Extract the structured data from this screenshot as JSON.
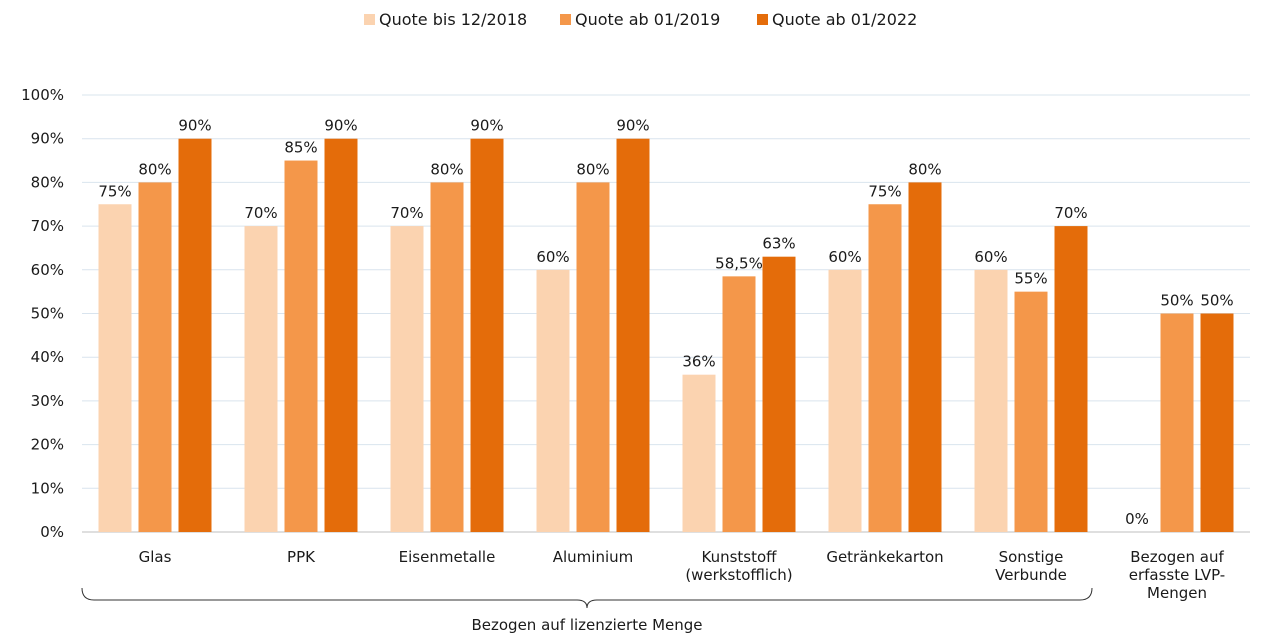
{
  "chart_data": {
    "type": "bar",
    "categories": [
      [
        "Glas"
      ],
      [
        "PPK"
      ],
      [
        "Eisenmetalle"
      ],
      [
        "Aluminium"
      ],
      [
        "Kunststoff",
        "(werkstofflich)"
      ],
      [
        "Getränkekarton"
      ],
      [
        "Sonstige",
        "Verbunde"
      ],
      [
        "Bezogen auf",
        "erfasste LVP-",
        "Mengen"
      ]
    ],
    "series": [
      {
        "name": "Quote bis 12/2018",
        "color": "#fbd3b0",
        "values": [
          75,
          70,
          70,
          60,
          36,
          60,
          60,
          0
        ],
        "labels": [
          "75%",
          "70%",
          "70%",
          "60%",
          "36%",
          "60%",
          "60%",
          "0%"
        ]
      },
      {
        "name": "Quote ab 01/2019",
        "color": "#f4974a",
        "values": [
          80,
          85,
          80,
          80,
          58.5,
          75,
          55,
          50
        ],
        "labels": [
          "80%",
          "85%",
          "80%",
          "80%",
          "58,5%",
          "75%",
          "55%",
          "50%"
        ]
      },
      {
        "name": "Quote ab 01/2022",
        "color": "#e46c0a",
        "values": [
          90,
          90,
          90,
          90,
          63,
          80,
          70,
          50
        ],
        "labels": [
          "90%",
          "90%",
          "90%",
          "90%",
          "63%",
          "80%",
          "70%",
          "50%"
        ]
      }
    ],
    "ylim": [
      0,
      100
    ],
    "yticks": [
      "0%",
      "10%",
      "20%",
      "30%",
      "40%",
      "50%",
      "60%",
      "70%",
      "80%",
      "90%",
      "100%"
    ],
    "grid": true,
    "legend_position": "top-center",
    "group_annotation": {
      "label": "Bezogen auf lizenzierte Menge",
      "spans_categories": [
        0,
        6
      ]
    },
    "title": "",
    "xlabel": "",
    "ylabel": ""
  }
}
